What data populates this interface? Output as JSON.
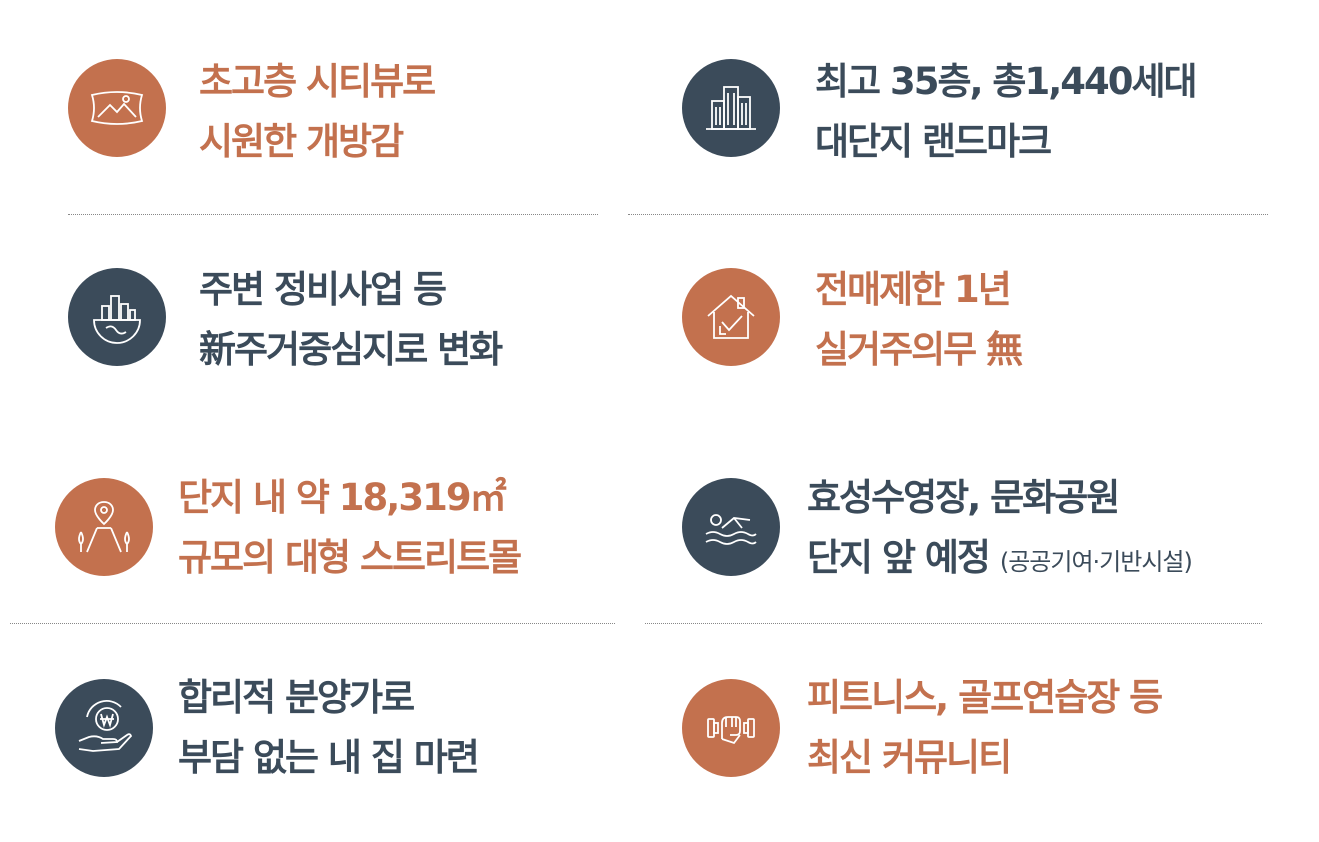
{
  "features": [
    {
      "line1": "초고층 시티뷰로",
      "line2": "시원한 개방감",
      "icon": "landscape-frame-icon",
      "color": "#c3714e"
    },
    {
      "line1": "최고 35층, 총1,440세대",
      "line2": "대단지 랜드마크",
      "icon": "buildings-icon",
      "color": "#3b4b5a"
    },
    {
      "line1": "주변 정비사업 등",
      "line2": "新주거중심지로 변화",
      "icon": "city-globe-icon",
      "color": "#3b4b5a"
    },
    {
      "line1": "전매제한 1년",
      "line2": "실거주의무 無",
      "icon": "house-check-icon",
      "color": "#c3714e"
    },
    {
      "line1": "단지 내 약 18,319㎡",
      "line2": "규모의 대형 스트리트몰",
      "icon": "street-location-icon",
      "color": "#c3714e"
    },
    {
      "line1": "효성수영장, 문화공원",
      "line2_main": "단지 앞 예정",
      "line2_sub": "(공공기여·기반시설)",
      "icon": "swimmer-icon",
      "color": "#3b4b5a"
    },
    {
      "line1": "합리적 분양가로",
      "line2": "부담 없는 내 집 마련",
      "icon": "hand-won-icon",
      "color": "#3b4b5a"
    },
    {
      "line1": "피트니스, 골프연습장 등",
      "line2": "최신 커뮤니티",
      "icon": "fitness-arm-icon",
      "color": "#c3714e"
    }
  ]
}
